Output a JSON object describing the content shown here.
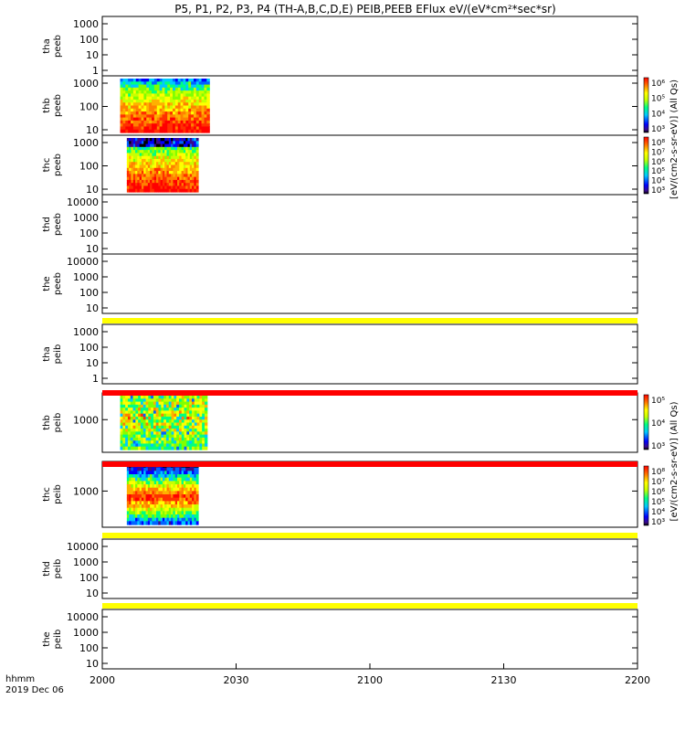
{
  "chart_data": {
    "type": "heatmap",
    "title": "P5, P1, P2, P3, P4 (TH-A,B,C,D,E) PEIB,PEEB EFlux eV/(eV*cm²*sec*sr)",
    "colorbar_label": "[eV/(cm2-s-sr-eV)] (All Qs)",
    "x_axis": {
      "label_line1": "hhmm",
      "label_line2": "2019 Dec 06",
      "range": [
        0,
        120
      ],
      "ticks": [
        {
          "v": 0,
          "label": "2000"
        },
        {
          "v": 30,
          "label": "2030"
        },
        {
          "v": 60,
          "label": "2100"
        },
        {
          "v": 90,
          "label": "2130"
        },
        {
          "v": 120,
          "label": "2200"
        }
      ]
    },
    "panels": [
      {
        "id": "tha-peeb",
        "probe": "tha",
        "product": "peeb",
        "yticks": [
          "1000",
          "100",
          "10",
          "1"
        ],
        "data": null
      },
      {
        "id": "thb-peeb",
        "probe": "thb",
        "product": "peeb",
        "yticks": [
          "1000",
          "100",
          "10"
        ],
        "data": [
          4,
          24
        ]
      },
      {
        "id": "thc-peeb",
        "probe": "thc",
        "product": "peeb",
        "yticks": [
          "1000",
          "100",
          "10"
        ],
        "data": [
          5.5,
          21.5
        ]
      },
      {
        "id": "thd-peeb",
        "probe": "thd",
        "product": "peeb",
        "yticks": [
          "10000",
          "1000",
          "100",
          "10"
        ],
        "data": null
      },
      {
        "id": "the-peeb",
        "probe": "the",
        "product": "peeb",
        "yticks": [
          "10000",
          "1000",
          "100",
          "10"
        ],
        "data": null
      },
      {
        "id": "tha-peib",
        "probe": "tha",
        "product": "peib",
        "yticks": [
          "1000",
          "100",
          "10",
          "1"
        ],
        "data": null
      },
      {
        "id": "thb-peib",
        "probe": "thb",
        "product": "peib",
        "yticks": [
          "1000"
        ],
        "data": [
          4,
          23.5
        ]
      },
      {
        "id": "thc-peib",
        "probe": "thc",
        "product": "peib",
        "yticks": [
          "1000"
        ],
        "data": [
          5.5,
          21.5
        ]
      },
      {
        "id": "thd-peib",
        "probe": "thd",
        "product": "peib",
        "yticks": [
          "10000",
          "1000",
          "100",
          "10"
        ],
        "data": null
      },
      {
        "id": "the-peib",
        "probe": "the",
        "product": "peib",
        "yticks": [
          "10000",
          "1000",
          "100",
          "10"
        ],
        "data": null
      }
    ],
    "colorbars": [
      {
        "id": "cb-thb-peeb",
        "ticks": [
          "10⁶",
          "10⁵",
          "10⁴",
          "10³"
        ]
      },
      {
        "id": "cb-thc-peeb",
        "ticks": [
          "10⁸",
          "10⁷",
          "10⁶",
          "10⁵",
          "10⁴",
          "10³"
        ]
      },
      {
        "id": "cb-thb-peib",
        "ticks": [
          "10⁵",
          "10⁴",
          "10³"
        ]
      },
      {
        "id": "cb-thc-peib",
        "ticks": [
          "10⁸",
          "10⁷",
          "10⁶",
          "10⁵",
          "10⁴",
          "10³"
        ]
      }
    ],
    "status_bars": [
      {
        "id": "bar-the-peeb",
        "color": "#ffff00"
      },
      {
        "id": "bar-tha-peib",
        "color": "#ff0000"
      },
      {
        "id": "bar-thb-peib",
        "color": "#ff0000"
      },
      {
        "id": "bar-thc-peib",
        "color": "#ffff00"
      },
      {
        "id": "bar-thd-peib",
        "color": "#ffff00"
      }
    ]
  }
}
